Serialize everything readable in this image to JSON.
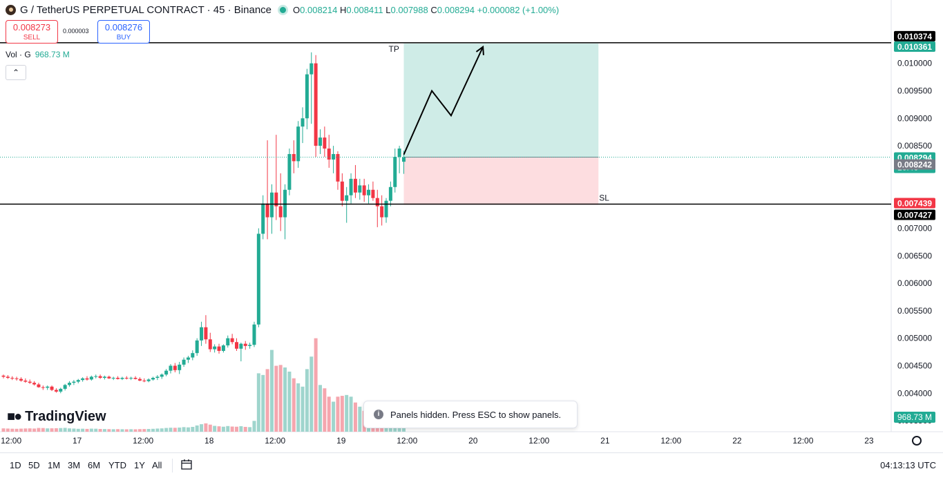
{
  "header": {
    "title": "G / TetherUS PERPETUAL CONTRACT · 45 · Binance",
    "o_label": "O",
    "o_value": "0.008214",
    "h_label": "H",
    "h_value": "0.008411",
    "l_label": "L",
    "l_value": "0.007988",
    "c_label": "C",
    "c_value": "0.008294",
    "change": "+0.000082 (+1.00%)"
  },
  "trade": {
    "sell_price": "0.008273",
    "sell_label": "SELL",
    "spread": "0.000003",
    "buy_price": "0.008276",
    "buy_label": "BUY"
  },
  "volume_legend": {
    "label": "Vol · G",
    "value": "968.73 M"
  },
  "logo_text": "TradingView",
  "toast": "Panels hidden. Press ESC to show panels.",
  "bottom": {
    "ranges": [
      "1D",
      "5D",
      "1M",
      "3M",
      "6M",
      "YTD",
      "1Y",
      "All"
    ],
    "clock": "04:13:13 UTC"
  },
  "colors": {
    "up": "#22ab94",
    "down": "#f23645",
    "vol_up": "#9fd5cd",
    "vol_down": "#f5a6ae",
    "tp_zone": "#cfece7",
    "sl_zone": "#fddde0"
  },
  "chart_data": {
    "type": "candlestick",
    "ylim": [
      0.0033,
      0.0108
    ],
    "y_ticks": [
      "0.010000",
      "0.009500",
      "0.009000",
      "0.008500",
      "0.007000",
      "0.006500",
      "0.006000",
      "0.005500",
      "0.005000",
      "0.004500",
      "0.004000",
      "0.003500"
    ],
    "x_ticks": [
      {
        "label": "12:00",
        "t": 0
      },
      {
        "label": "17",
        "t": 12
      },
      {
        "label": "12:00",
        "t": 24
      },
      {
        "label": "18",
        "t": 36
      },
      {
        "label": "12:00",
        "t": 48
      },
      {
        "label": "19",
        "t": 60
      },
      {
        "label": "12:00",
        "t": 72
      },
      {
        "label": "20",
        "t": 84
      },
      {
        "label": "12:00",
        "t": 96
      },
      {
        "label": "21",
        "t": 108
      },
      {
        "label": "12:00",
        "t": 120
      },
      {
        "label": "22",
        "t": 132
      },
      {
        "label": "12:00",
        "t": 144
      },
      {
        "label": "23",
        "t": 156
      }
    ],
    "t_range": [
      -1.4,
      163.8
    ],
    "candles": [
      [
        -1.4,
        0.00432,
        0.00434,
        0.00427,
        0.0043,
        40
      ],
      [
        -0.6,
        0.0043,
        0.00433,
        0.00426,
        0.00428,
        38
      ],
      [
        0.2,
        0.00428,
        0.00431,
        0.00424,
        0.00427,
        36
      ],
      [
        1.0,
        0.00427,
        0.0043,
        0.00423,
        0.00426,
        35
      ],
      [
        1.8,
        0.00426,
        0.00429,
        0.00421,
        0.00423,
        37
      ],
      [
        2.6,
        0.00423,
        0.00427,
        0.00419,
        0.00421,
        39
      ],
      [
        3.4,
        0.00421,
        0.00425,
        0.00417,
        0.00419,
        40
      ],
      [
        4.2,
        0.00419,
        0.00422,
        0.00414,
        0.00416,
        38
      ],
      [
        5.0,
        0.00416,
        0.00419,
        0.0041,
        0.00411,
        45
      ],
      [
        5.8,
        0.00411,
        0.00414,
        0.00406,
        0.0041,
        44
      ],
      [
        6.6,
        0.0041,
        0.00414,
        0.00406,
        0.00412,
        40
      ],
      [
        7.4,
        0.00412,
        0.00414,
        0.00404,
        0.00406,
        41
      ],
      [
        8.2,
        0.00406,
        0.00409,
        0.00401,
        0.00403,
        42
      ],
      [
        9.0,
        0.00403,
        0.0041,
        0.004,
        0.00408,
        44
      ],
      [
        9.8,
        0.00408,
        0.00417,
        0.00405,
        0.00415,
        46
      ],
      [
        10.6,
        0.00415,
        0.00422,
        0.00412,
        0.00419,
        40
      ],
      [
        11.4,
        0.00419,
        0.00424,
        0.00415,
        0.00421,
        38
      ],
      [
        12.2,
        0.00421,
        0.00426,
        0.00418,
        0.00424,
        35
      ],
      [
        13.0,
        0.00424,
        0.00429,
        0.00421,
        0.00427,
        36
      ],
      [
        13.8,
        0.00427,
        0.00431,
        0.00423,
        0.00425,
        34
      ],
      [
        14.6,
        0.00425,
        0.00432,
        0.00423,
        0.0043,
        37
      ],
      [
        15.4,
        0.0043,
        0.00434,
        0.00427,
        0.00431,
        36
      ],
      [
        16.2,
        0.00431,
        0.00434,
        0.00426,
        0.00428,
        33
      ],
      [
        17.0,
        0.00428,
        0.00432,
        0.00425,
        0.0043,
        32
      ],
      [
        17.8,
        0.0043,
        0.00432,
        0.00426,
        0.00427,
        31
      ],
      [
        18.6,
        0.00427,
        0.0043,
        0.00424,
        0.00428,
        30
      ],
      [
        19.4,
        0.00428,
        0.00431,
        0.00425,
        0.00426,
        31
      ],
      [
        20.2,
        0.00426,
        0.0043,
        0.00424,
        0.00428,
        30
      ],
      [
        21.0,
        0.00428,
        0.00431,
        0.00425,
        0.00427,
        29
      ],
      [
        21.8,
        0.00427,
        0.0043,
        0.00424,
        0.00428,
        30
      ],
      [
        22.6,
        0.00428,
        0.00431,
        0.00425,
        0.00426,
        29
      ],
      [
        23.4,
        0.00426,
        0.00429,
        0.00422,
        0.00423,
        31
      ],
      [
        24.2,
        0.00423,
        0.00427,
        0.0042,
        0.00422,
        32
      ],
      [
        25.0,
        0.00422,
        0.00427,
        0.0042,
        0.00425,
        33
      ],
      [
        25.8,
        0.00425,
        0.0043,
        0.00423,
        0.00428,
        35
      ],
      [
        26.6,
        0.00428,
        0.00433,
        0.00424,
        0.0043,
        38
      ],
      [
        27.4,
        0.0043,
        0.00436,
        0.00426,
        0.00434,
        40
      ],
      [
        28.2,
        0.00434,
        0.00444,
        0.00431,
        0.00441,
        45
      ],
      [
        29.0,
        0.00441,
        0.00453,
        0.00436,
        0.0045,
        48
      ],
      [
        29.8,
        0.0045,
        0.00455,
        0.00438,
        0.00442,
        47
      ],
      [
        30.6,
        0.00442,
        0.00457,
        0.00435,
        0.00452,
        50
      ],
      [
        31.4,
        0.00452,
        0.00465,
        0.00448,
        0.00461,
        55
      ],
      [
        32.2,
        0.00461,
        0.00468,
        0.00455,
        0.00465,
        52
      ],
      [
        33.0,
        0.00465,
        0.00478,
        0.0046,
        0.00473,
        58
      ],
      [
        33.8,
        0.00473,
        0.005,
        0.00468,
        0.00496,
        75
      ],
      [
        34.6,
        0.00496,
        0.0053,
        0.00486,
        0.0052,
        90
      ],
      [
        35.4,
        0.0052,
        0.00542,
        0.0049,
        0.00498,
        100
      ],
      [
        36.2,
        0.00498,
        0.0051,
        0.00475,
        0.0048,
        85
      ],
      [
        37.0,
        0.0048,
        0.00489,
        0.00474,
        0.00485,
        70
      ],
      [
        37.8,
        0.00485,
        0.0049,
        0.00472,
        0.00477,
        65
      ],
      [
        38.6,
        0.00477,
        0.00489,
        0.00474,
        0.00487,
        60
      ],
      [
        39.4,
        0.00487,
        0.00505,
        0.00483,
        0.005,
        68
      ],
      [
        40.2,
        0.005,
        0.00508,
        0.00489,
        0.00493,
        62
      ],
      [
        41.0,
        0.00493,
        0.005,
        0.00477,
        0.00481,
        60
      ],
      [
        41.8,
        0.00481,
        0.00492,
        0.00458,
        0.0049,
        66
      ],
      [
        42.6,
        0.0049,
        0.00495,
        0.00479,
        0.00486,
        58
      ],
      [
        43.4,
        0.00486,
        0.00492,
        0.00481,
        0.00488,
        55
      ],
      [
        44.2,
        0.00488,
        0.0053,
        0.00484,
        0.00525,
        130
      ],
      [
        45.0,
        0.00525,
        0.007,
        0.0052,
        0.0069,
        700
      ],
      [
        45.8,
        0.0069,
        0.0076,
        0.0068,
        0.00745,
        680
      ],
      [
        46.6,
        0.00745,
        0.0086,
        0.0068,
        0.0072,
        750
      ],
      [
        47.4,
        0.0072,
        0.0078,
        0.0069,
        0.00765,
        980
      ],
      [
        48.2,
        0.00765,
        0.0087,
        0.00715,
        0.0074,
        790
      ],
      [
        49.0,
        0.0074,
        0.008,
        0.00695,
        0.0072,
        800
      ],
      [
        49.8,
        0.0072,
        0.0078,
        0.0068,
        0.0077,
        770
      ],
      [
        50.6,
        0.0077,
        0.00845,
        0.0076,
        0.00835,
        720
      ],
      [
        51.4,
        0.00835,
        0.0086,
        0.008,
        0.00822,
        640
      ],
      [
        52.2,
        0.00822,
        0.00895,
        0.0081,
        0.00885,
        580
      ],
      [
        53.0,
        0.00885,
        0.0092,
        0.00855,
        0.009,
        540
      ],
      [
        53.8,
        0.009,
        0.0099,
        0.0088,
        0.0098,
        750
      ],
      [
        54.6,
        0.0098,
        0.0102,
        0.0089,
        0.01,
        900
      ],
      [
        55.4,
        0.01,
        0.01015,
        0.0083,
        0.0085,
        1120
      ],
      [
        56.2,
        0.0085,
        0.0088,
        0.00835,
        0.00865,
        560
      ],
      [
        57.0,
        0.00865,
        0.00885,
        0.0083,
        0.00845,
        520
      ],
      [
        57.8,
        0.00845,
        0.0087,
        0.0081,
        0.00825,
        420
      ],
      [
        58.6,
        0.00825,
        0.0085,
        0.008,
        0.00835,
        360
      ],
      [
        59.4,
        0.00835,
        0.0084,
        0.0077,
        0.00785,
        420
      ],
      [
        60.2,
        0.00785,
        0.008,
        0.0074,
        0.0075,
        430
      ],
      [
        61.0,
        0.0075,
        0.00775,
        0.0071,
        0.0076,
        440
      ],
      [
        61.8,
        0.0076,
        0.008,
        0.00745,
        0.0079,
        420
      ],
      [
        62.6,
        0.0079,
        0.00815,
        0.00755,
        0.00765,
        350
      ],
      [
        63.4,
        0.00765,
        0.0079,
        0.00752,
        0.00778,
        300
      ],
      [
        64.2,
        0.00778,
        0.0079,
        0.00748,
        0.0076,
        250
      ],
      [
        65.0,
        0.0076,
        0.0078,
        0.00745,
        0.0077,
        210
      ],
      [
        65.8,
        0.0077,
        0.00785,
        0.0075,
        0.00755,
        180
      ],
      [
        66.6,
        0.00755,
        0.0077,
        0.00702,
        0.0074,
        160
      ],
      [
        67.4,
        0.0074,
        0.0076,
        0.00705,
        0.0072,
        140
      ],
      [
        68.2,
        0.0072,
        0.00755,
        0.0071,
        0.0075,
        170
      ],
      [
        69.0,
        0.0075,
        0.00785,
        0.0074,
        0.00775,
        200
      ],
      [
        69.8,
        0.00775,
        0.00845,
        0.00765,
        0.0083,
        290
      ],
      [
        70.6,
        0.0083,
        0.0085,
        0.008,
        0.00845,
        260
      ],
      [
        71.4,
        0.00821,
        0.00841,
        0.00799,
        0.00829,
        120
      ]
    ],
    "position": {
      "entry": 0.008294,
      "take_profit": 0.010361,
      "stop_loss": 0.007427,
      "t_start": 71.4,
      "t_end": 106.8,
      "tp_label": "TP",
      "sl_label": "SL"
    },
    "projection": [
      [
        71.4,
        0.00834
      ],
      [
        76.5,
        0.0095
      ],
      [
        80.0,
        0.00905
      ],
      [
        85.8,
        0.0103
      ]
    ],
    "horizontal_lines": [
      {
        "price": 0.010374,
        "label": "0.010374"
      },
      {
        "price": 0.007439,
        "label": "0.007439"
      }
    ],
    "price_labels": [
      {
        "price": 0.010374,
        "text": "0.010374",
        "bg": "#000000",
        "fg": "#ffffff"
      },
      {
        "price": 0.010361,
        "text": "0.010361",
        "bg": "#22ab94",
        "fg": "#ffffff"
      },
      {
        "price": 0.008294,
        "text": "0.008294",
        "sub": "16:46",
        "bg": "#22ab94",
        "fg": "#ffffff"
      },
      {
        "price": 0.008242,
        "text": "0.008242",
        "bg": "#787b86",
        "fg": "#ffffff"
      },
      {
        "price": 0.007439,
        "text": "0.007439",
        "bg": "#f23645",
        "fg": "#ffffff"
      },
      {
        "price": 0.007427,
        "text": "0.007427",
        "bg": "#000000",
        "fg": "#ffffff"
      }
    ],
    "volume_label": "968.73 M",
    "volume_max": 1200
  }
}
